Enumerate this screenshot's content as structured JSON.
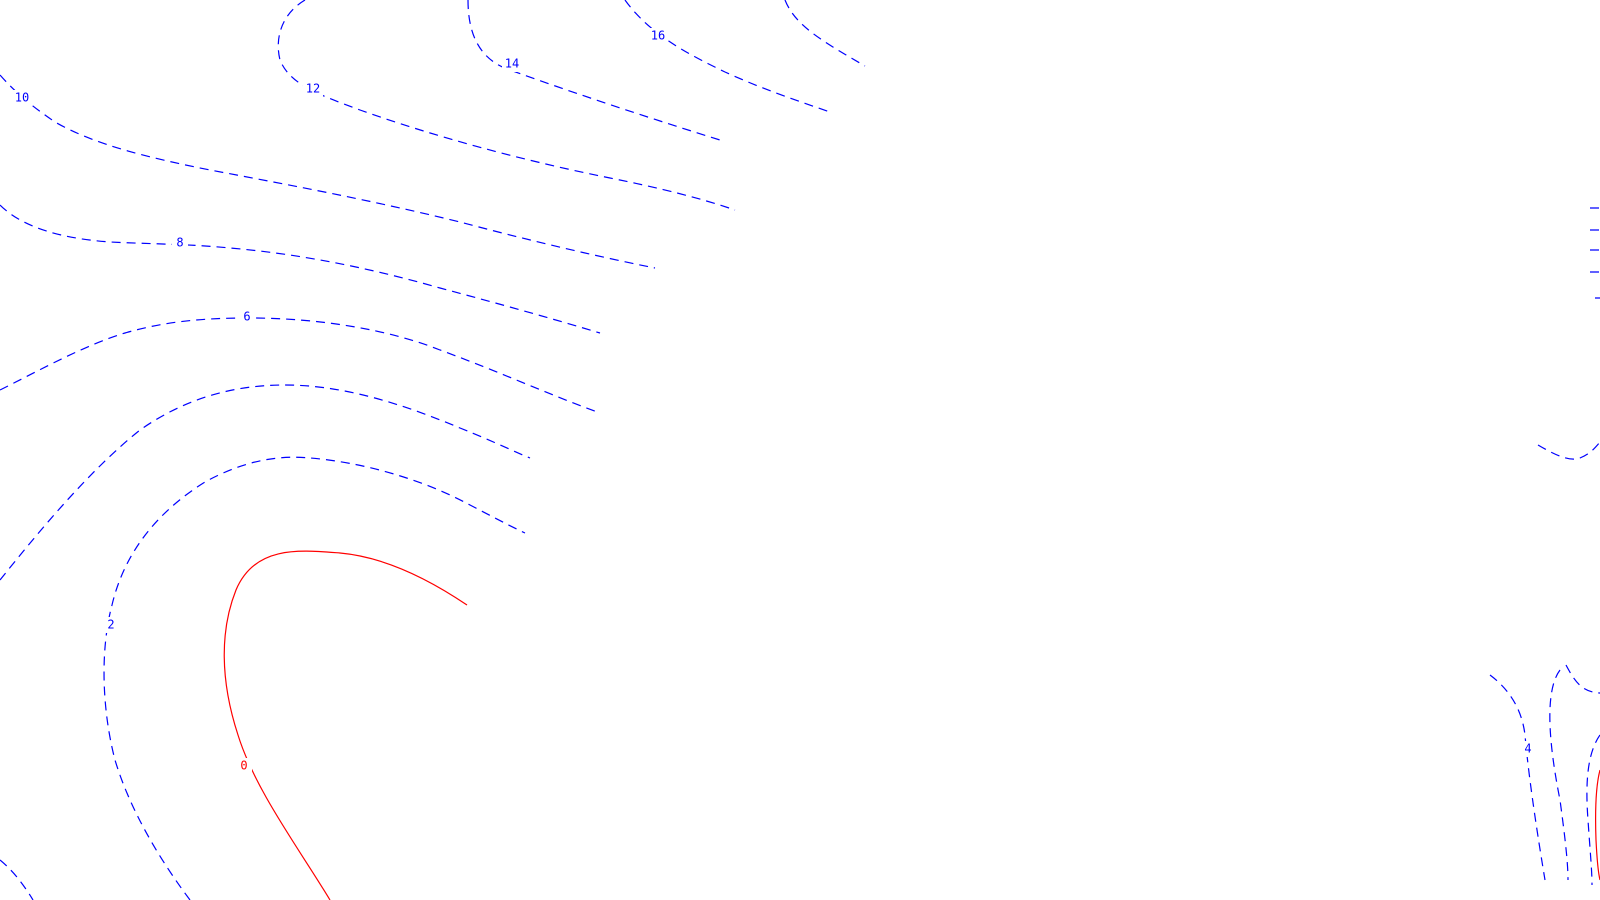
{
  "map": {
    "negative_color": "#0000ff",
    "zero_color": "#ff0000",
    "labels": {
      "c2": "2",
      "c4": "4",
      "c6": "6",
      "c8": "8",
      "c10": "10",
      "c12": "12",
      "c14": "14",
      "c16": "16",
      "c0": "0"
    }
  }
}
